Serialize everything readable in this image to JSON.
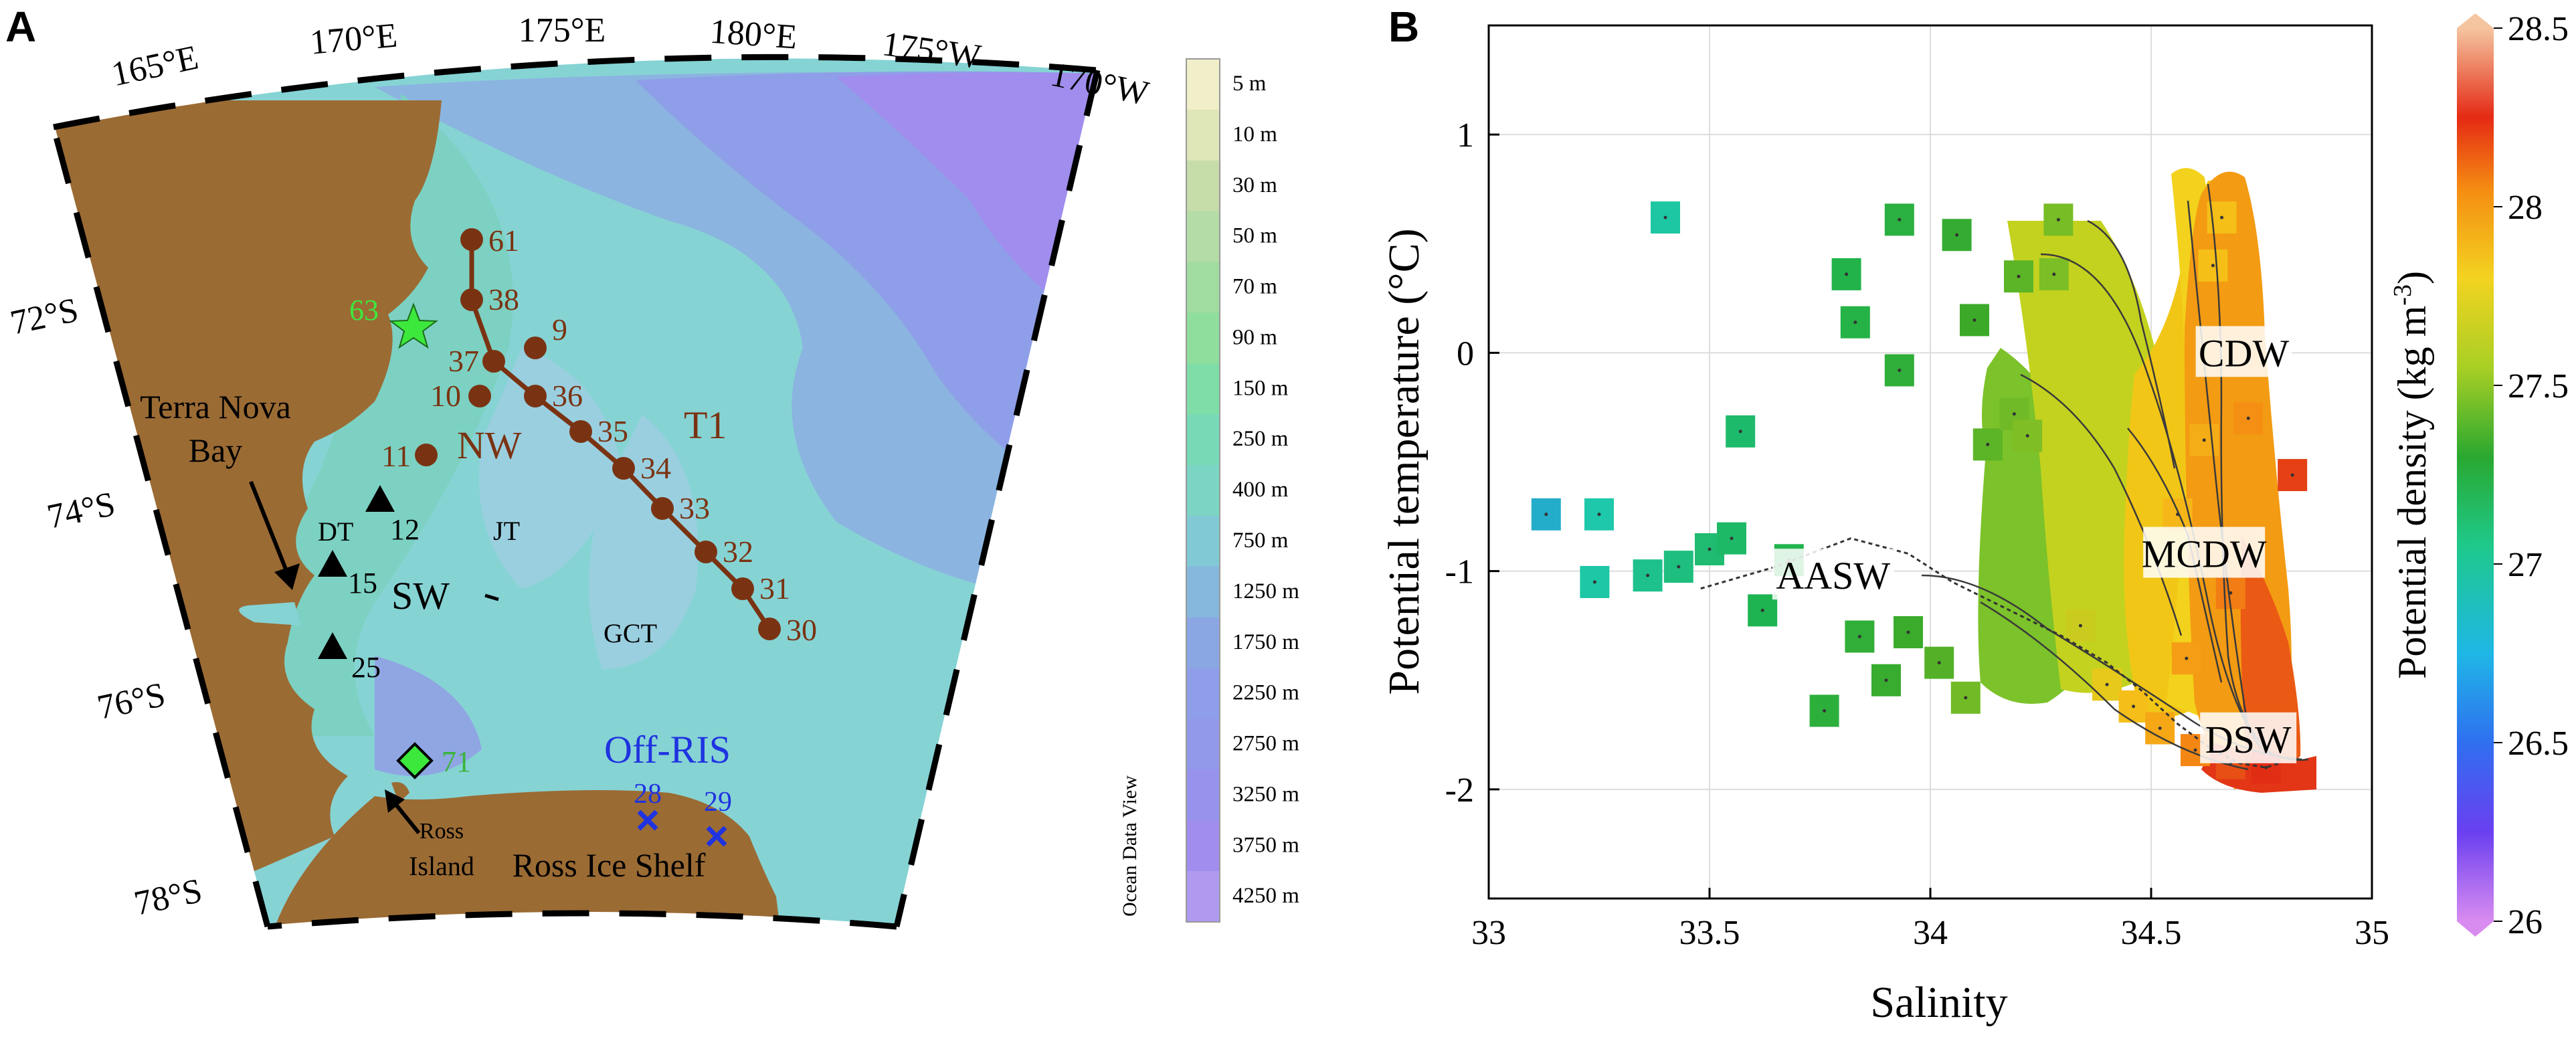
{
  "panel_a": {
    "letter": "A",
    "lon_labels": [
      "165°E",
      "170°E",
      "175°E",
      "180°E",
      "175°W",
      "170°W"
    ],
    "lat_labels": [
      "72°S",
      "74°S",
      "76°S",
      "78°S"
    ],
    "depth_scale": {
      "title": "Ocean Data View",
      "entries": [
        {
          "label": "5 m",
          "color": "#f1efc9"
        },
        {
          "label": "10 m",
          "color": "#dfe6b8"
        },
        {
          "label": "30 m",
          "color": "#c7dda9"
        },
        {
          "label": "50 m",
          "color": "#b3dca6"
        },
        {
          "label": "70 m",
          "color": "#a0dc9f"
        },
        {
          "label": "90 m",
          "color": "#8fde9d"
        },
        {
          "label": "150 m",
          "color": "#7fdda8"
        },
        {
          "label": "250 m",
          "color": "#78d9b6"
        },
        {
          "label": "400 m",
          "color": "#7cd4c4"
        },
        {
          "label": "750 m",
          "color": "#82c9d6"
        },
        {
          "label": "1250 m",
          "color": "#86b8de"
        },
        {
          "label": "1750 m",
          "color": "#8ba7e3"
        },
        {
          "label": "2250 m",
          "color": "#8e9ee8"
        },
        {
          "label": "2750 m",
          "color": "#9298ea"
        },
        {
          "label": "3250 m",
          "color": "#9792ec"
        },
        {
          "label": "3750 m",
          "color": "#a08ded"
        },
        {
          "label": "4250 m",
          "color": "#b09af0"
        }
      ]
    },
    "stations_t1": [
      "61",
      "38",
      "37",
      "36",
      "35",
      "34",
      "33",
      "32",
      "31",
      "30"
    ],
    "stations_other": [
      "9",
      "10",
      "11"
    ],
    "stations_triangle": [
      "12",
      "15",
      "25"
    ],
    "station_star": "63",
    "station_diamond": "71",
    "stations_cross": [
      "28",
      "29"
    ],
    "region_labels": {
      "nw": "NW",
      "t1": "T1",
      "sw": "SW",
      "jt": "JT",
      "gct": "GCT",
      "dt": "DT",
      "off_ris": "Off-RIS",
      "terra_nova_1": "Terra Nova",
      "terra_nova_2": "Bay",
      "ross_island_1": "Ross",
      "ross_island_2": "Island",
      "ross_ice_shelf": "Ross Ice Shelf"
    },
    "colors": {
      "land": "#9b6b34",
      "station": "#7a3312",
      "star": "#3de83d",
      "off_ris": "#1f33e0"
    }
  },
  "panel_b": {
    "letter": "B",
    "chart_data": {
      "type": "scatter",
      "title": "",
      "xlabel": "Salinity",
      "ylabel": "Potential temperature (°C)",
      "xlim": [
        33,
        35
      ],
      "ylim": [
        -2.5,
        1.5
      ],
      "xticks": [
        "33",
        "33.5",
        "34",
        "34.5",
        "35"
      ],
      "yticks": [
        "-2",
        "-1",
        "0",
        "1"
      ],
      "colorbar": {
        "label": "Potential density (kg m-3)",
        "label_main": "Potential density (kg m",
        "label_sup": "-3",
        "label_end": ")",
        "min": 26,
        "max": 28.5,
        "ticks": [
          "26",
          "26.5",
          "27",
          "27.5",
          "28",
          "28.5"
        ]
      },
      "water_masses": [
        {
          "name": "CDW",
          "salinity": 34.71,
          "temperature": 0.0
        },
        {
          "name": "MCDW",
          "salinity": 34.62,
          "temperature": -0.92
        },
        {
          "name": "AASW",
          "salinity": 33.78,
          "temperature": -1.02
        },
        {
          "name": "DSW",
          "salinity": 34.72,
          "temperature": -1.77
        }
      ],
      "points": [
        [
          33.4,
          0.62
        ],
        [
          33.13,
          -0.74
        ],
        [
          33.25,
          -0.74
        ],
        [
          33.24,
          -1.05
        ],
        [
          33.57,
          -0.36
        ],
        [
          33.81,
          0.36
        ],
        [
          33.83,
          0.14
        ],
        [
          33.93,
          0.61
        ],
        [
          33.93,
          -0.08
        ],
        [
          34.06,
          0.54
        ],
        [
          34.29,
          0.61
        ],
        [
          34.82,
          -0.56
        ],
        [
          33.36,
          -1.02
        ],
        [
          33.43,
          -0.98
        ],
        [
          33.5,
          -0.9
        ],
        [
          33.55,
          -0.85
        ],
        [
          33.62,
          -1.18
        ],
        [
          33.68,
          -0.95
        ],
        [
          33.76,
          -1.64
        ],
        [
          33.84,
          -1.3
        ],
        [
          33.9,
          -1.5
        ],
        [
          33.95,
          -1.28
        ],
        [
          34.02,
          -1.42
        ],
        [
          34.08,
          -1.58
        ],
        [
          34.13,
          -0.42
        ],
        [
          34.19,
          -0.28
        ],
        [
          34.22,
          -0.38
        ],
        [
          34.1,
          0.15
        ],
        [
          34.2,
          0.35
        ],
        [
          34.28,
          0.36
        ],
        [
          34.34,
          -1.25
        ],
        [
          34.4,
          -1.52
        ],
        [
          34.46,
          -1.62
        ],
        [
          34.52,
          -1.72
        ],
        [
          34.6,
          -1.82
        ],
        [
          34.68,
          -1.88
        ],
        [
          34.76,
          -1.9
        ],
        [
          34.56,
          -0.74
        ],
        [
          34.62,
          -0.4
        ],
        [
          34.66,
          0.62
        ],
        [
          34.64,
          0.4
        ],
        [
          34.72,
          -0.3
        ],
        [
          34.68,
          -1.1
        ],
        [
          34.58,
          -1.4
        ]
      ],
      "curve": [
        [
          33.48,
          -1.08
        ],
        [
          33.65,
          -0.98
        ],
        [
          33.82,
          -0.85
        ],
        [
          33.95,
          -0.92
        ],
        [
          34.05,
          -1.05
        ],
        [
          34.18,
          -1.18
        ],
        [
          34.3,
          -1.3
        ],
        [
          34.4,
          -1.42
        ],
        [
          34.48,
          -1.55
        ],
        [
          34.56,
          -1.7
        ],
        [
          34.64,
          -1.82
        ],
        [
          34.7,
          -1.88
        ],
        [
          34.76,
          -1.9
        ],
        [
          34.79,
          -1.88
        ]
      ]
    }
  }
}
